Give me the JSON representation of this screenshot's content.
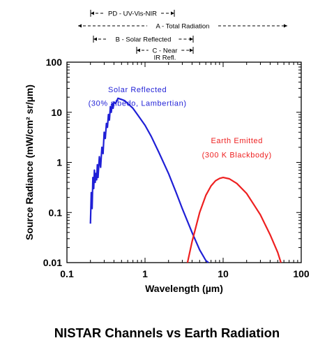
{
  "chart_data": {
    "type": "line",
    "x_scale": "log",
    "y_scale": "log",
    "xlabel": "Wavelength (µm)",
    "ylabel": "Source Radiance (mW/cm² sr/µm)",
    "xlim": [
      0.1,
      100
    ],
    "ylim": [
      0.01,
      100
    ],
    "x_ticks": [
      "0.1",
      "1",
      "10",
      "100"
    ],
    "y_ticks": [
      "100",
      "10",
      "1",
      "0.1",
      "0.01"
    ],
    "grid": false,
    "series": [
      {
        "name": "Solar Reflected",
        "color": "#1f1fd6",
        "x": [
          0.2,
          0.205,
          0.21,
          0.215,
          0.22,
          0.225,
          0.23,
          0.235,
          0.24,
          0.245,
          0.25,
          0.26,
          0.27,
          0.28,
          0.29,
          0.3,
          0.31,
          0.32,
          0.33,
          0.34,
          0.35,
          0.36,
          0.37,
          0.38,
          0.39,
          0.4,
          0.42,
          0.45,
          0.5,
          0.55,
          0.6,
          0.7,
          0.8,
          1.0,
          1.2,
          1.5,
          2.0,
          2.5,
          3.0,
          4.0,
          5.0,
          6.0,
          6.5
        ],
        "y": [
          0.06,
          0.25,
          0.12,
          0.5,
          0.3,
          0.7,
          0.4,
          0.6,
          0.45,
          0.9,
          0.5,
          1.3,
          0.8,
          2.0,
          1.5,
          4.0,
          3.0,
          6.0,
          5.0,
          9.0,
          7.0,
          13.0,
          10.0,
          15.0,
          12.0,
          16.0,
          15.0,
          19.0,
          18.0,
          17.0,
          15.0,
          12.0,
          9.0,
          5.5,
          3.3,
          1.6,
          0.6,
          0.25,
          0.12,
          0.04,
          0.018,
          0.011,
          0.01
        ]
      },
      {
        "name": "Earth Emitted",
        "color": "#ee2020",
        "x": [
          3.5,
          4.0,
          5.0,
          6.0,
          7.0,
          8.0,
          9.0,
          10.0,
          12.0,
          15.0,
          20.0,
          25.0,
          30.0,
          40.0,
          50.0,
          55.0
        ],
        "y": [
          0.01,
          0.026,
          0.1,
          0.22,
          0.34,
          0.43,
          0.48,
          0.5,
          0.47,
          0.38,
          0.24,
          0.14,
          0.09,
          0.036,
          0.016,
          0.01
        ]
      }
    ],
    "annotations": [
      {
        "text": "Solar Reflected",
        "x": 0.8,
        "y": 25,
        "color": "#1f1fd6"
      },
      {
        "text": "(30% albedo, Lambertian)",
        "x": 0.8,
        "y": 13.5,
        "color": "#1f1fd6"
      },
      {
        "text": "Earth Emitted",
        "x": 15,
        "y": 2.4,
        "color": "#ee2020"
      },
      {
        "text": "(300 K Blackbody)",
        "x": 15,
        "y": 1.25,
        "color": "#ee2020"
      }
    ],
    "channels": [
      {
        "label": "PD - UV-Vis-NIR",
        "x_start": 0.2,
        "x_end": 4.0
      },
      {
        "label": "A - Total Radiation",
        "x_start": 0.1,
        "x_end": 100
      },
      {
        "label": "B - Solar Reflected",
        "x_start": 0.2,
        "x_end": 5.0
      },
      {
        "label_lines": [
          "C - Near",
          "IR Refl."
        ],
        "x_start": 0.7,
        "x_end": 5.0
      }
    ]
  },
  "caption": "NISTAR Channels vs Earth Radiation"
}
